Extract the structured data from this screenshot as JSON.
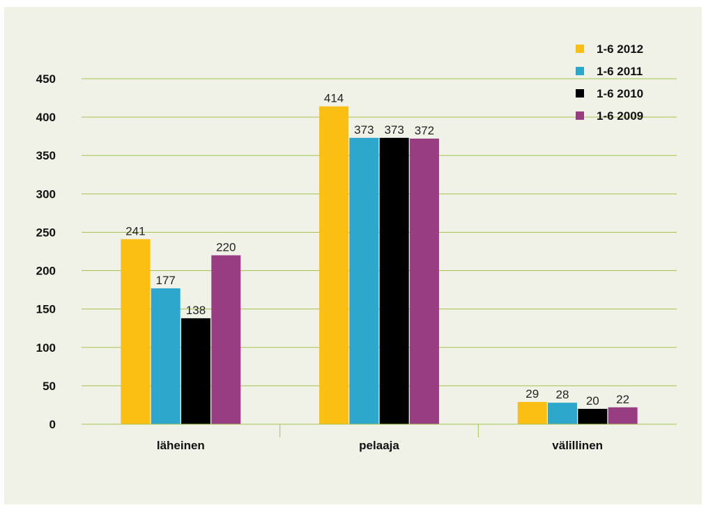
{
  "chart_data": {
    "type": "bar",
    "categories": [
      "läheinen",
      "pelaaja",
      "välillinen"
    ],
    "series": [
      {
        "name": "1-6 2012",
        "color": "#fbbe12",
        "values": [
          241,
          414,
          29
        ]
      },
      {
        "name": "1-6 2011",
        "color": "#2ea7cc",
        "values": [
          177,
          373,
          28
        ]
      },
      {
        "name": "1-6 2010",
        "color": "#000000",
        "values": [
          138,
          373,
          20
        ]
      },
      {
        "name": "1-6 2009",
        "color": "#983d81",
        "values": [
          220,
          372,
          22
        ]
      }
    ],
    "data_labels": [
      [
        "241",
        "414",
        "29"
      ],
      [
        "177",
        "373",
        "28"
      ],
      [
        "138",
        "373",
        "20"
      ],
      [
        "220",
        "372",
        "22"
      ]
    ],
    "y_ticks": [
      "0",
      "50",
      "100",
      "150",
      "200",
      "250",
      "300",
      "350",
      "400",
      "450"
    ],
    "ylim": [
      0,
      450
    ],
    "grid": true,
    "gridline_color": "#a4c24a",
    "background_color": "#f0f2e7",
    "legend_position": "top-right",
    "title": "",
    "xlabel": "",
    "ylabel": ""
  }
}
